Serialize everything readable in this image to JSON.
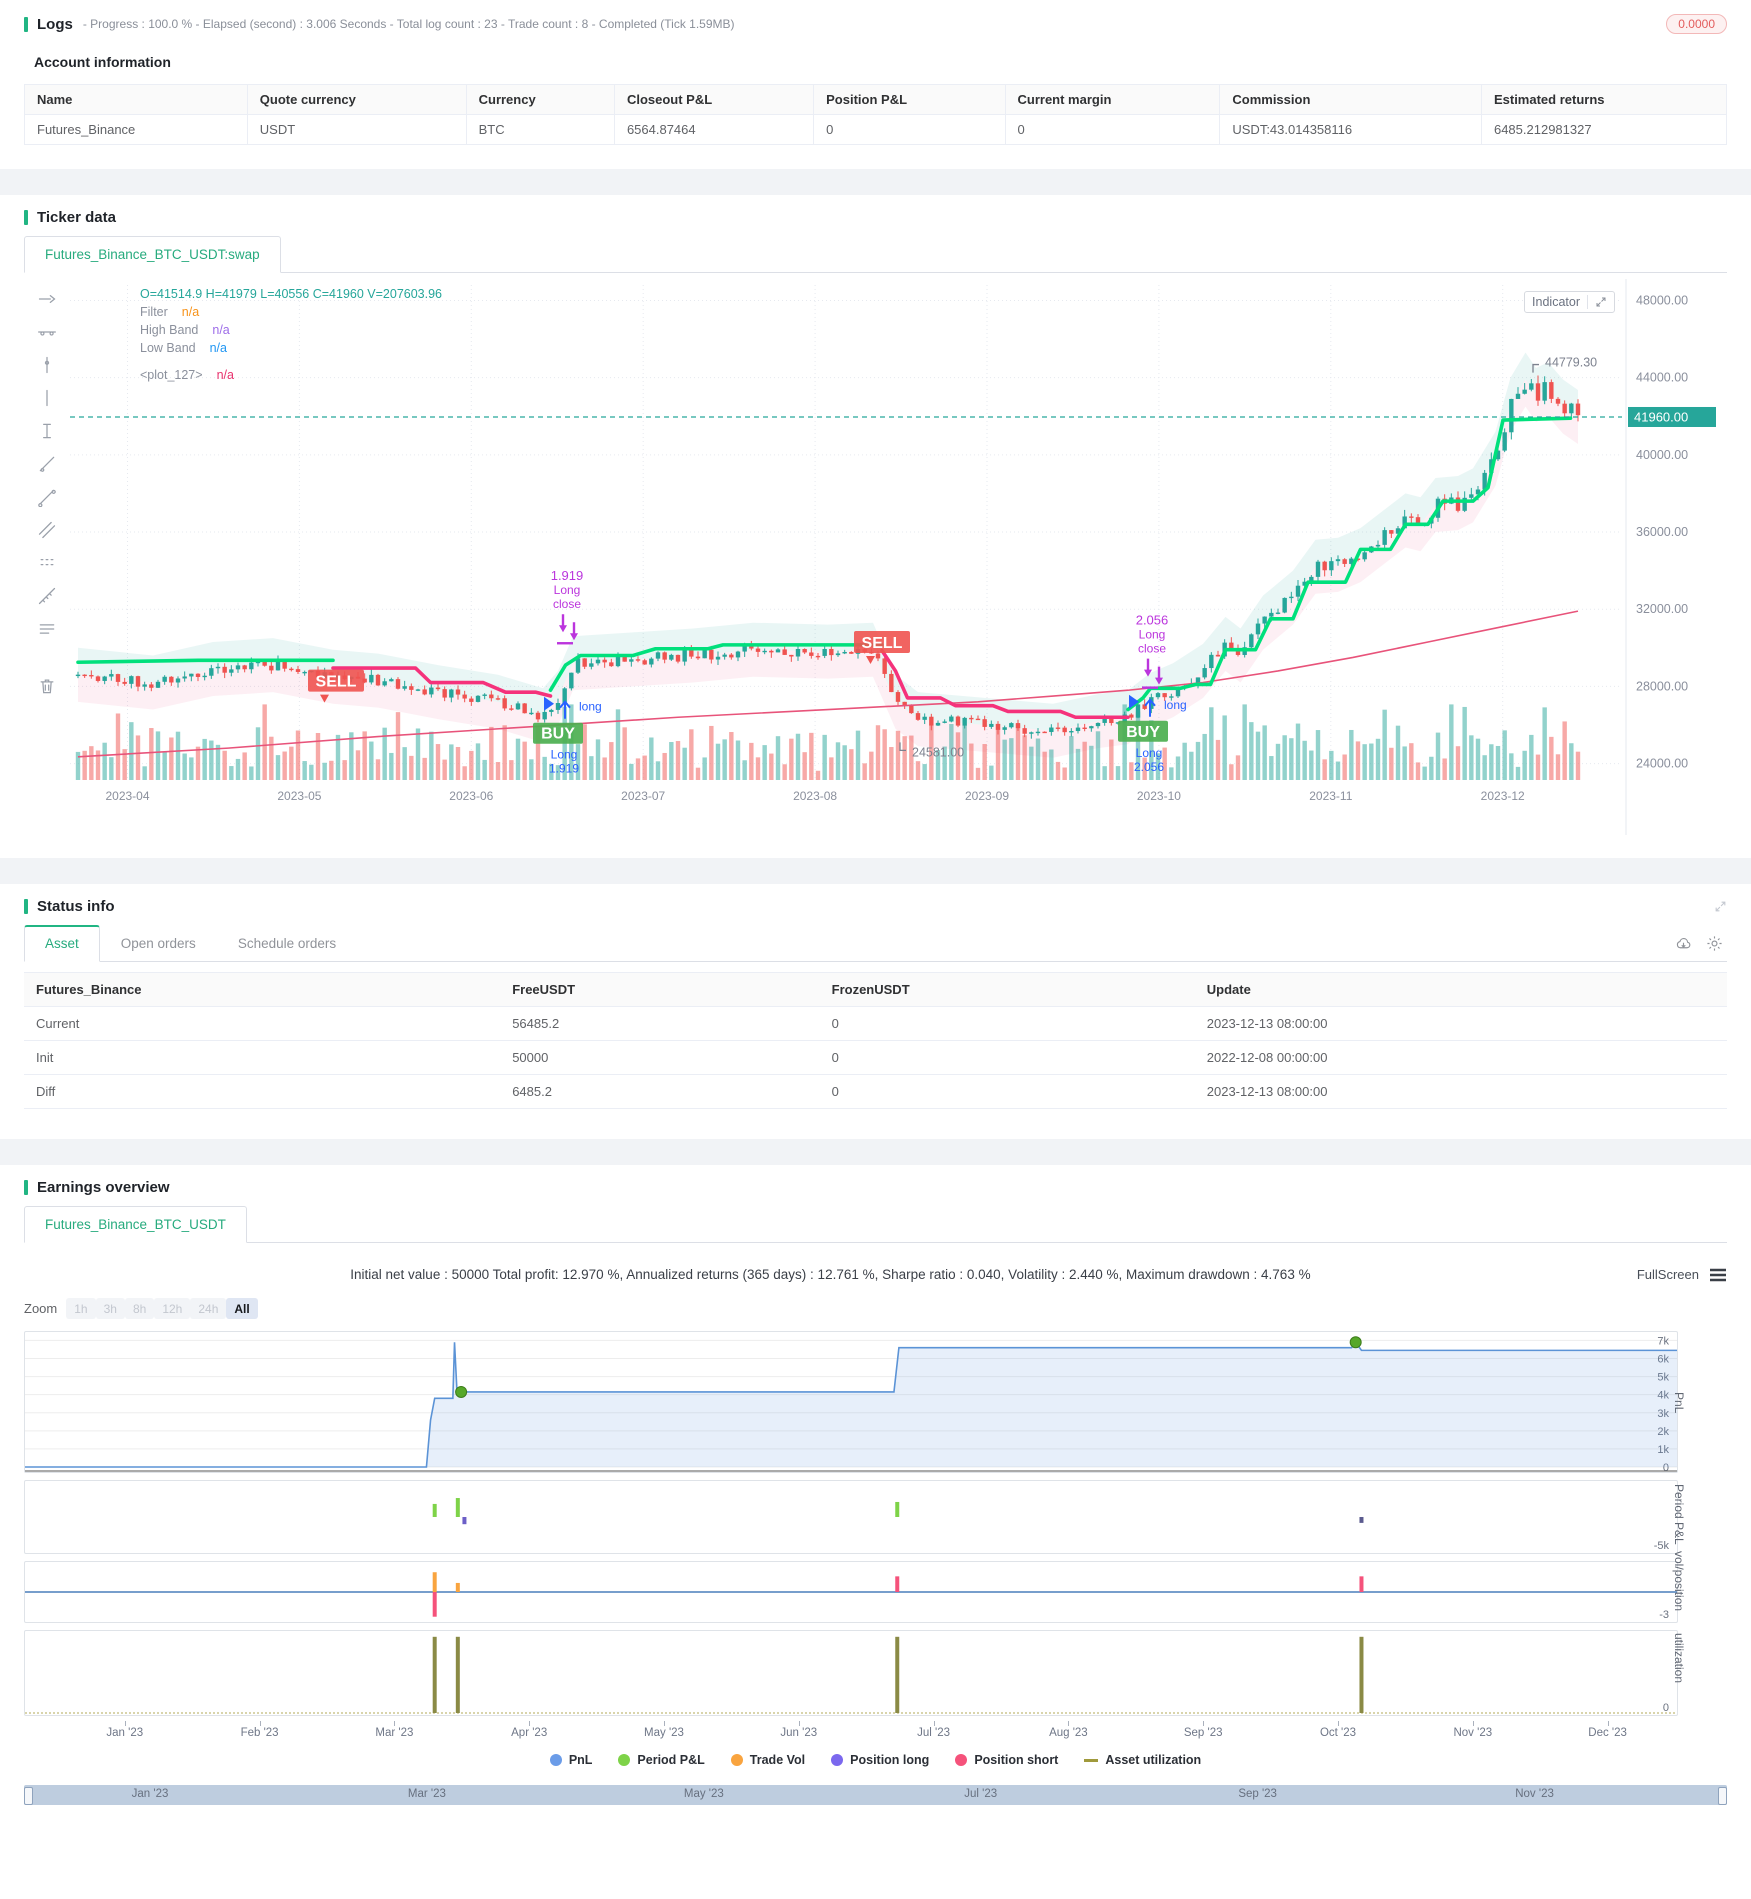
{
  "logs": {
    "title": "Logs",
    "subtitle": "- Progress : 100.0 % - Elapsed (second) : 3.006 Seconds - Total log count : 23 - Trade count : 8 - Completed (Tick 1.59MB)",
    "badge": "0.0000"
  },
  "account": {
    "heading": "Account information",
    "columns": [
      "Name",
      "Quote currency",
      "Currency",
      "Closeout P&L",
      "Position P&L",
      "Current margin",
      "Commission",
      "Estimated returns"
    ],
    "rows": [
      [
        "Futures_Binance",
        "USDT",
        "BTC",
        "6564.87464",
        "0",
        "0",
        "USDT:43.014358116",
        "6485.212981327"
      ]
    ]
  },
  "ticker": {
    "section_title": "Ticker data",
    "tab": "Futures_Binance_BTC_USDT:swap",
    "indicator_button": "Indicator",
    "legend_ohlc": "O=41514.9 H=41979 L=40556 C=41960 V=207603.96",
    "legend_rows": [
      {
        "label": "Filter",
        "value": "n/a",
        "color": "#f7931a"
      },
      {
        "label": "High Band",
        "value": "n/a",
        "color": "#9d6ce8"
      },
      {
        "label": "Low Band",
        "value": "n/a",
        "color": "#2196f3"
      },
      {
        "label": "<plot_127>",
        "value": "n/a",
        "color": "#e8336e",
        "gap": true
      }
    ]
  },
  "status": {
    "section_title": "Status info",
    "tabs": [
      "Asset",
      "Open orders",
      "Schedule orders"
    ],
    "active_tab": "Asset",
    "table": {
      "columns": [
        "Futures_Binance",
        "FreeUSDT",
        "FrozenUSDT",
        "Update"
      ],
      "rows": [
        {
          "cells": [
            "Current",
            "56485.2",
            "0",
            "2023-12-13 08:00:00"
          ],
          "style": "current"
        },
        {
          "cells": [
            "Init",
            "50000",
            "0",
            "2022-12-08 00:00:00"
          ],
          "style": "normal"
        },
        {
          "cells": [
            "Diff",
            "6485.2",
            "0",
            "2023-12-13 08:00:00"
          ],
          "style": "diff"
        }
      ]
    }
  },
  "earnings": {
    "section_title": "Earnings overview",
    "tab": "Futures_Binance_BTC_USDT",
    "summary": "Initial net value : 50000 Total profit: 12.970 %, Annualized returns (365 days) : 12.761 %, Sharpe ratio : 0.040, Volatility : 2.440 %, Maximum drawdown : 4.763 %",
    "fullscreen_label": "FullScreen",
    "zoom_label": "Zoom",
    "zoom_options": [
      "1h",
      "3h",
      "8h",
      "12h",
      "24h",
      "All"
    ],
    "zoom_active": "All"
  },
  "chart_data": [
    {
      "type": "candlestick",
      "title": "Futures_Binance_BTC_USDT:swap",
      "x_labels": [
        "2023-04",
        "2023-05",
        "2023-06",
        "2023-07",
        "2023-08",
        "2023-09",
        "2023-10",
        "2023-11",
        "2023-12"
      ],
      "y_ticks": [
        "48000.00",
        "44000.00",
        "40000.00",
        "36000.00",
        "32000.00",
        "28000.00",
        "24000.00"
      ],
      "y_tick_values": [
        48000,
        44000,
        40000,
        36000,
        32000,
        28000,
        24000
      ],
      "y_range": [
        23200,
        48800
      ],
      "last_price": 41960,
      "last_price_label": "41960.00",
      "ohlc": {
        "open": 41514.9,
        "high": 41979,
        "low": 40556,
        "close": 41960,
        "volume": 207603.96
      },
      "price_path": [
        [
          0,
          28600
        ],
        [
          0.05,
          28200
        ],
        [
          0.09,
          28900
        ],
        [
          0.13,
          29100
        ],
        [
          0.17,
          28500
        ],
        [
          0.2,
          28300
        ],
        [
          0.24,
          27700
        ],
        [
          0.28,
          27200
        ],
        [
          0.31,
          26500
        ],
        [
          0.32,
          27400
        ],
        [
          0.33,
          29200
        ],
        [
          0.37,
          29400
        ],
        [
          0.41,
          29600
        ],
        [
          0.45,
          29900
        ],
        [
          0.5,
          29800
        ],
        [
          0.53,
          29900
        ],
        [
          0.545,
          27200
        ],
        [
          0.56,
          26300
        ],
        [
          0.59,
          26100
        ],
        [
          0.62,
          25900
        ],
        [
          0.65,
          25700
        ],
        [
          0.68,
          26200
        ],
        [
          0.7,
          26400
        ],
        [
          0.715,
          27300
        ],
        [
          0.73,
          27800
        ],
        [
          0.75,
          28800
        ],
        [
          0.765,
          30200
        ],
        [
          0.775,
          29600
        ],
        [
          0.79,
          31300
        ],
        [
          0.81,
          32600
        ],
        [
          0.825,
          34200
        ],
        [
          0.84,
          34300
        ],
        [
          0.855,
          34800
        ],
        [
          0.87,
          35700
        ],
        [
          0.885,
          36600
        ],
        [
          0.895,
          36400
        ],
        [
          0.905,
          37400
        ],
        [
          0.92,
          37500
        ],
        [
          0.93,
          37900
        ],
        [
          0.945,
          39800
        ],
        [
          0.955,
          42600
        ],
        [
          0.965,
          43900
        ],
        [
          0.972,
          43100
        ],
        [
          0.98,
          43400
        ],
        [
          0.99,
          42500
        ],
        [
          1.0,
          41960
        ]
      ],
      "ma_path": [
        [
          0,
          24350
        ],
        [
          0.1,
          24800
        ],
        [
          0.2,
          25400
        ],
        [
          0.3,
          25900
        ],
        [
          0.4,
          26400
        ],
        [
          0.5,
          26800
        ],
        [
          0.55,
          27000
        ],
        [
          0.6,
          27200
        ],
        [
          0.65,
          27500
        ],
        [
          0.7,
          27800
        ],
        [
          0.75,
          28200
        ],
        [
          0.8,
          28800
        ],
        [
          0.85,
          29500
        ],
        [
          0.9,
          30300
        ],
        [
          0.95,
          31100
        ],
        [
          1,
          31900
        ]
      ],
      "trend_segments": [
        {
          "dir": "up",
          "points": [
            [
              0,
              29250
            ],
            [
              0.08,
              29350
            ],
            [
              0.17,
              29350
            ]
          ]
        },
        {
          "dir": "down",
          "points": [
            [
              0.17,
              28950
            ],
            [
              0.225,
              28950
            ],
            [
              0.235,
              28200
            ],
            [
              0.27,
              28200
            ],
            [
              0.285,
              27700
            ],
            [
              0.305,
              27700
            ],
            [
              0.315,
              27500
            ]
          ]
        },
        {
          "dir": "up",
          "points": [
            [
              0.315,
              27800
            ],
            [
              0.325,
              29100
            ],
            [
              0.335,
              29600
            ],
            [
              0.37,
              29600
            ],
            [
              0.385,
              29950
            ],
            [
              0.42,
              29950
            ],
            [
              0.43,
              30150
            ],
            [
              0.536,
              30150
            ]
          ]
        },
        {
          "dir": "down",
          "points": [
            [
              0.536,
              29850
            ],
            [
              0.545,
              28800
            ],
            [
              0.553,
              27400
            ],
            [
              0.575,
              27400
            ],
            [
              0.585,
              27000
            ],
            [
              0.61,
              27000
            ],
            [
              0.62,
              26700
            ],
            [
              0.655,
              26700
            ],
            [
              0.665,
              26400
            ],
            [
              0.7,
              26400
            ]
          ]
        },
        {
          "dir": "up",
          "points": [
            [
              0.7,
              26800
            ],
            [
              0.71,
              27400
            ],
            [
              0.715,
              27900
            ],
            [
              0.735,
              27900
            ],
            [
              0.745,
              28100
            ],
            [
              0.755,
              28100
            ],
            [
              0.765,
              29900
            ],
            [
              0.785,
              29900
            ],
            [
              0.795,
              31500
            ],
            [
              0.81,
              31500
            ],
            [
              0.82,
              33400
            ],
            [
              0.845,
              33400
            ],
            [
              0.855,
              35100
            ],
            [
              0.875,
              35100
            ],
            [
              0.885,
              36400
            ],
            [
              0.9,
              36400
            ],
            [
              0.91,
              37600
            ],
            [
              0.93,
              37600
            ],
            [
              0.94,
              38300
            ],
            [
              0.95,
              41800
            ],
            [
              0.995,
              41900
            ]
          ]
        }
      ],
      "annotations": [
        {
          "t": 0.548,
          "price": 24581,
          "text": "24581.00",
          "dir": "down"
        },
        {
          "t": 0.97,
          "price": 44779.3,
          "text": "44779.30",
          "dir": "up"
        }
      ],
      "trade_markers": [
        {
          "kind": "sell",
          "t": 0.172,
          "price": 28300,
          "label": "SELL"
        },
        {
          "kind": "close",
          "t": 0.326,
          "price": 33500,
          "lines": [
            "1.919",
            "Long",
            "close"
          ]
        },
        {
          "kind": "buy",
          "t": 0.32,
          "price": 25600,
          "label": "BUY",
          "above": "long",
          "below": [
            "Long",
            "1.919"
          ]
        },
        {
          "kind": "sell",
          "t": 0.536,
          "price": 30300,
          "label": "SELL"
        },
        {
          "kind": "close",
          "t": 0.716,
          "price": 31200,
          "lines": [
            "2.056",
            "Long",
            "close"
          ]
        },
        {
          "kind": "buy",
          "t": 0.71,
          "price": 25700,
          "label": "BUY",
          "above": "long",
          "below": [
            "Long",
            "2.056"
          ]
        }
      ],
      "colors": {
        "up": "#26a69a",
        "down": "#ef5350",
        "trend_up": "#00e07c",
        "trend_down": "#f5327b",
        "ma": "#e8537a",
        "band_up": "rgba(38,166,154,0.10)",
        "band_down": "rgba(233,30,99,0.07)",
        "buy": "#4caf50",
        "sell": "#ef5350",
        "close_marker": "#bb35dd",
        "arrow": "#2962ff",
        "tag": "#26a69a"
      }
    },
    {
      "type": "multi-panel-line",
      "x_labels": [
        "Jan '23",
        "Feb '23",
        "Mar '23",
        "Apr '23",
        "May '23",
        "Jun '23",
        "Jul '23",
        "Aug '23",
        "Sep '23",
        "Oct '23",
        "Nov '23",
        "Dec '23"
      ],
      "navigator_labels": [
        "Jan '23",
        "Mar '23",
        "May '23",
        "Jul '23",
        "Sep '23",
        "Nov '23"
      ],
      "legend": [
        {
          "label": "PnL",
          "color": "#6b9ce8",
          "shape": "dot"
        },
        {
          "label": "Period P&L",
          "color": "#7ed348",
          "shape": "dot"
        },
        {
          "label": "Trade Vol",
          "color": "#f9a43f",
          "shape": "dot"
        },
        {
          "label": "Position long",
          "color": "#7b68ee",
          "shape": "dot"
        },
        {
          "label": "Position short",
          "color": "#f5527b",
          "shape": "dot"
        },
        {
          "label": "Asset utilization",
          "color": "#a09a3c",
          "shape": "bar"
        }
      ],
      "panels": [
        {
          "name": "PnL",
          "range": [
            0,
            7300
          ],
          "axis_labels": [
            "7k",
            "6k",
            "5k",
            "4k",
            "3k",
            "2k",
            "1k",
            "0"
          ],
          "axis_values": [
            7000,
            6000,
            5000,
            4000,
            3000,
            2000,
            1000,
            0
          ],
          "steps": [
            [
              0,
              0
            ],
            [
              24.3,
              0
            ],
            [
              24.55,
              2600
            ],
            [
              24.8,
              3800
            ],
            [
              25.9,
              3800
            ],
            [
              26.0,
              6900
            ],
            [
              26.15,
              4150
            ],
            [
              52.6,
              4150
            ],
            [
              52.9,
              6600
            ],
            [
              80.3,
              6600
            ],
            [
              80.55,
              6900
            ],
            [
              80.9,
              6450
            ],
            [
              100,
              6450
            ]
          ],
          "dots": [
            [
              26.4,
              4150
            ],
            [
              80.55,
              6900
            ]
          ]
        },
        {
          "name": "Period P&L",
          "range": [
            -5200,
            5200
          ],
          "axis_labels": [
            "-5k"
          ],
          "axis_values": [
            -5000
          ],
          "bars": [
            {
              "x": 24.8,
              "v": 2000,
              "c": "#7ed348"
            },
            {
              "x": 26.2,
              "v": 2900,
              "c": "#7ed348"
            },
            {
              "x": 26.6,
              "v": -1100,
              "c": "#6c5fc7"
            },
            {
              "x": 52.8,
              "v": 2300,
              "c": "#7ed348"
            },
            {
              "x": 80.9,
              "v": -900,
              "c": "#5a5a8e"
            }
          ]
        },
        {
          "name": "vol/position",
          "range": [
            -3.4,
            3.4
          ],
          "axis_labels": [
            "-3"
          ],
          "axis_values": [
            -3
          ],
          "zero_line": "#4a7ebb",
          "bars": [
            {
              "x": 24.8,
              "v": 2.4,
              "c": "#f9a43f"
            },
            {
              "x": 24.8,
              "v": -3,
              "c": "#f5527b"
            },
            {
              "x": 26.2,
              "v": 1.1,
              "c": "#f9a43f"
            },
            {
              "x": 52.8,
              "v": 1.9,
              "c": "#f5527b"
            },
            {
              "x": 80.9,
              "v": 1.9,
              "c": "#f5527b"
            }
          ]
        },
        {
          "name": "utilization",
          "range": [
            0,
            1.05
          ],
          "axis_labels": [
            "0"
          ],
          "axis_values": [
            0
          ],
          "base_dash": true,
          "bars": [
            {
              "x": 24.8,
              "v": 1,
              "c": "#8a8a45"
            },
            {
              "x": 26.2,
              "v": 1,
              "c": "#8a8a45"
            },
            {
              "x": 52.8,
              "v": 1,
              "c": "#8a8a45"
            },
            {
              "x": 80.9,
              "v": 1,
              "c": "#8a8a45"
            }
          ]
        }
      ]
    }
  ]
}
